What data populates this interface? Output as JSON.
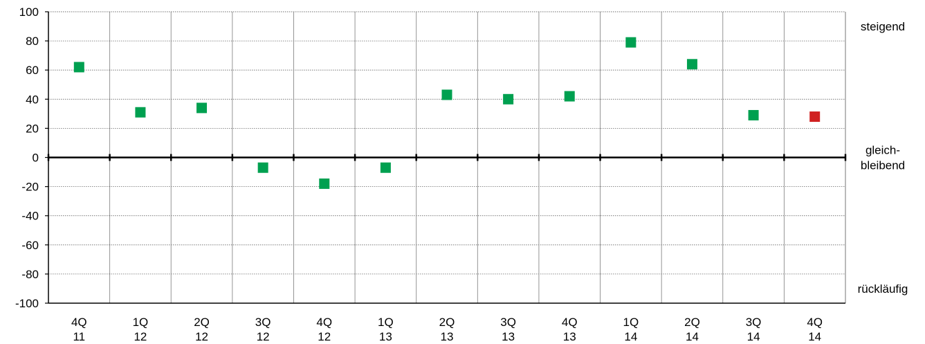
{
  "chart_data": {
    "type": "scatter",
    "categories": [
      [
        "4Q",
        "11"
      ],
      [
        "1Q",
        "12"
      ],
      [
        "2Q",
        "12"
      ],
      [
        "3Q",
        "12"
      ],
      [
        "4Q",
        "12"
      ],
      [
        "1Q",
        "13"
      ],
      [
        "2Q",
        "13"
      ],
      [
        "3Q",
        "13"
      ],
      [
        "4Q",
        "13"
      ],
      [
        "1Q",
        "14"
      ],
      [
        "2Q",
        "14"
      ],
      [
        "3Q",
        "14"
      ],
      [
        "4Q",
        "14"
      ]
    ],
    "values": [
      62,
      31,
      34,
      -7,
      -18,
      -7,
      43,
      40,
      42,
      79,
      64,
      29,
      28
    ],
    "point_colors": [
      "#00a050",
      "#00a050",
      "#00a050",
      "#00a050",
      "#00a050",
      "#00a050",
      "#00a050",
      "#00a050",
      "#00a050",
      "#00a050",
      "#00a050",
      "#00a050",
      "#d02020"
    ],
    "ylim": [
      -100,
      100
    ],
    "yticks": [
      -100,
      -80,
      -60,
      -40,
      -20,
      0,
      20,
      40,
      60,
      80,
      100
    ],
    "grid": true,
    "right_labels": [
      {
        "lines": [
          "steigend"
        ],
        "y": 90
      },
      {
        "lines": [
          "gleich-",
          "bleibend"
        ],
        "y": 0
      },
      {
        "lines": [
          "rückläufig"
        ],
        "y": -90
      }
    ],
    "title": "",
    "xlabel": "",
    "ylabel": ""
  }
}
